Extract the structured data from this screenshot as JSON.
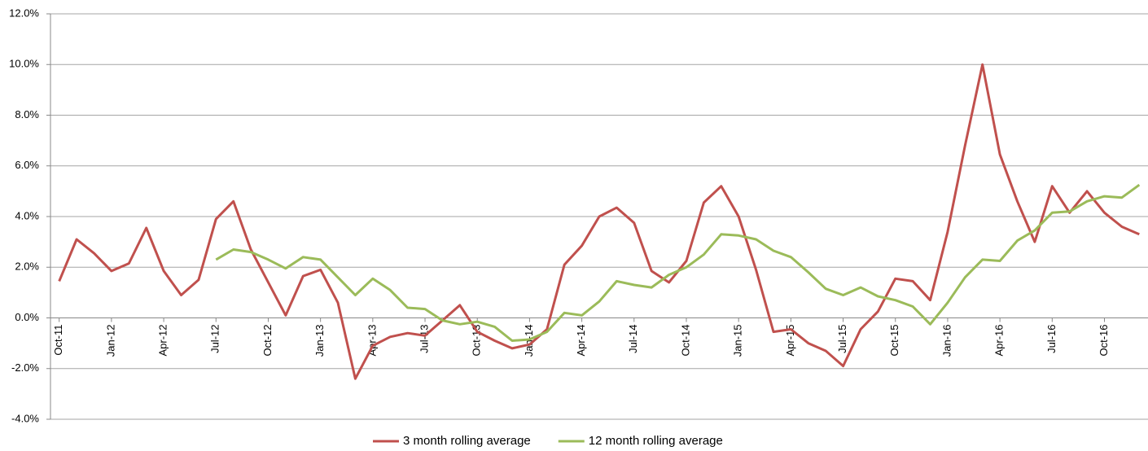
{
  "chart_data": {
    "type": "line",
    "categories": [
      "Oct-11",
      null,
      null,
      "Jan-12",
      null,
      null,
      "Apr-12",
      null,
      null,
      "Jul-12",
      null,
      null,
      "Oct-12",
      null,
      null,
      "Jan-13",
      null,
      null,
      "Apr-13",
      null,
      null,
      "Jul-13",
      null,
      null,
      "Oct-13",
      null,
      null,
      "Jan-14",
      null,
      null,
      "Apr-14",
      null,
      null,
      "Jul-14",
      null,
      null,
      "Oct-14",
      null,
      null,
      "Jan-15",
      null,
      null,
      "Apr-15",
      null,
      null,
      "Jul-15",
      null,
      null,
      "Oct-15",
      null,
      null,
      "Jan-16",
      null,
      null,
      "Apr-16",
      null,
      null,
      "Jul-16",
      null,
      null,
      "Oct-16",
      null,
      null
    ],
    "series": [
      {
        "name": "3 month rolling average",
        "color": "#c0504d",
        "values": [
          1.45,
          3.1,
          2.55,
          1.85,
          2.15,
          3.55,
          1.85,
          0.9,
          1.5,
          3.9,
          4.6,
          2.7,
          1.4,
          0.1,
          1.65,
          1.9,
          0.6,
          -2.4,
          -1.1,
          -0.75,
          -0.6,
          -0.7,
          -0.1,
          0.5,
          -0.55,
          -0.9,
          -1.2,
          -1.05,
          -0.45,
          2.1,
          2.85,
          4.0,
          4.35,
          3.75,
          1.85,
          1.4,
          2.25,
          4.55,
          5.2,
          4.0,
          1.9,
          -0.55,
          -0.45,
          -1.0,
          -1.3,
          -1.9,
          -0.45,
          0.25,
          1.55,
          1.45,
          0.7,
          3.4,
          6.8,
          10.0,
          6.45,
          4.6,
          3.0,
          5.2,
          4.15,
          5.0,
          4.15,
          3.6,
          3.3
        ]
      },
      {
        "name": "12 month rolling average",
        "color": "#9bbb59",
        "values": [
          null,
          null,
          null,
          null,
          null,
          null,
          null,
          null,
          null,
          2.3,
          2.7,
          2.6,
          2.3,
          1.95,
          2.4,
          2.3,
          1.6,
          0.9,
          1.55,
          1.1,
          0.4,
          0.35,
          -0.1,
          -0.25,
          -0.15,
          -0.35,
          -0.9,
          -0.85,
          -0.55,
          0.2,
          0.1,
          0.65,
          1.45,
          1.3,
          1.2,
          1.7,
          2.0,
          2.5,
          3.3,
          3.25,
          3.1,
          2.65,
          2.4,
          1.8,
          1.15,
          0.9,
          1.2,
          0.85,
          0.7,
          0.45,
          -0.25,
          0.6,
          1.6,
          2.3,
          2.25,
          3.05,
          3.45,
          4.15,
          4.2,
          4.6,
          4.8,
          4.75,
          5.25
        ]
      }
    ],
    "ylim": [
      -4,
      12
    ],
    "yticks": [
      {
        "value": -4,
        "label": "-4.0%"
      },
      {
        "value": -2,
        "label": "-2.0%"
      },
      {
        "value": 0,
        "label": "0.0%"
      },
      {
        "value": 2,
        "label": "2.0%"
      },
      {
        "value": 4,
        "label": "4.0%"
      },
      {
        "value": 6,
        "label": "6.0%"
      },
      {
        "value": 8,
        "label": "8.0%"
      },
      {
        "value": 10,
        "label": "10.0%"
      },
      {
        "value": 12,
        "label": "12.0%"
      }
    ],
    "grid": true,
    "legend": "bottom"
  }
}
